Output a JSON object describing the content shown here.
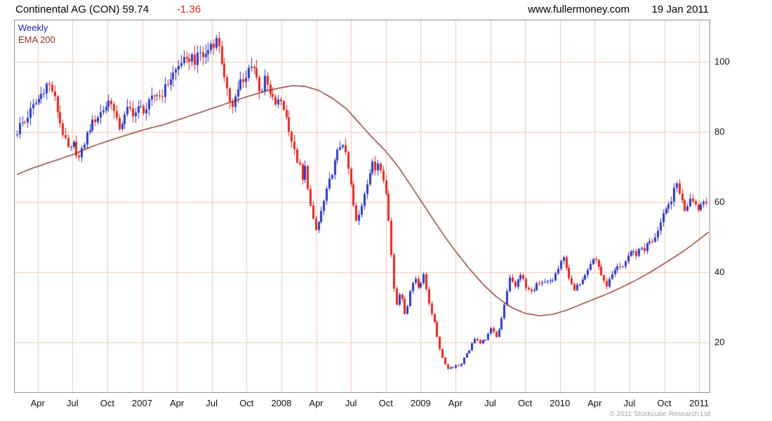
{
  "header": {
    "title": "Continental AG (CON) 59.74",
    "change": "-1.36",
    "site": "www.fullermoney.com",
    "date": "19 Jan 2011"
  },
  "legend": {
    "timeframe": "Weekly",
    "overlay": "EMA 200"
  },
  "footer": {
    "copyright": "© 2011 Stockcube Research Ltd"
  },
  "chart_data": {
    "type": "candlestick",
    "instrument": "Continental AG (CON)",
    "last_price": 59.74,
    "change": -1.36,
    "interval": "Weekly",
    "overlay": "EMA 200",
    "price_axis_side": "right",
    "grid": true,
    "legend_position": "top-left",
    "time_range": [
      2006.08,
      2011.08
    ],
    "candle_range": [
      2006.1,
      2011.05
    ],
    "ylim": [
      5.6,
      112
    ],
    "yticks": [
      100,
      80,
      60,
      40,
      20
    ],
    "xticks": [
      {
        "label": "Apr",
        "t": 2006.25
      },
      {
        "label": "Jul",
        "t": 2006.5
      },
      {
        "label": "Oct",
        "t": 2006.75
      },
      {
        "label": "2007",
        "t": 2007.0
      },
      {
        "label": "Apr",
        "t": 2007.25
      },
      {
        "label": "Jul",
        "t": 2007.5
      },
      {
        "label": "Oct",
        "t": 2007.75
      },
      {
        "label": "2008",
        "t": 2008.0
      },
      {
        "label": "Apr",
        "t": 2008.25
      },
      {
        "label": "Jul",
        "t": 2008.5
      },
      {
        "label": "Oct",
        "t": 2008.75
      },
      {
        "label": "2009",
        "t": 2009.0
      },
      {
        "label": "Apr",
        "t": 2009.25
      },
      {
        "label": "Jul",
        "t": 2009.5
      },
      {
        "label": "Oct",
        "t": 2009.75
      },
      {
        "label": "2010",
        "t": 2010.0
      },
      {
        "label": "Apr",
        "t": 2010.25
      },
      {
        "label": "Jul",
        "t": 2010.5
      },
      {
        "label": "Oct",
        "t": 2010.75
      },
      {
        "label": "2011",
        "t": 2011.0
      }
    ],
    "up_color": "#2d3bbf",
    "down_color": "#e02820",
    "ema_color": "#7f2b1c",
    "grid_color": "#f4c6b8",
    "frame_color": "#8c8c8c",
    "close_path": [
      [
        2006.08,
        79
      ],
      [
        2006.1,
        80
      ],
      [
        2006.13,
        83
      ],
      [
        2006.15,
        82
      ],
      [
        2006.17,
        84
      ],
      [
        2006.21,
        87
      ],
      [
        2006.25,
        89
      ],
      [
        2006.29,
        92
      ],
      [
        2006.32,
        94
      ],
      [
        2006.35,
        92
      ],
      [
        2006.38,
        88
      ],
      [
        2006.4,
        84
      ],
      [
        2006.44,
        78
      ],
      [
        2006.48,
        74
      ],
      [
        2006.5,
        77
      ],
      [
        2006.52,
        75
      ],
      [
        2006.54,
        72
      ],
      [
        2006.56,
        74
      ],
      [
        2006.6,
        79
      ],
      [
        2006.63,
        82
      ],
      [
        2006.67,
        84
      ],
      [
        2006.71,
        86
      ],
      [
        2006.75,
        88
      ],
      [
        2006.77,
        90
      ],
      [
        2006.8,
        85
      ],
      [
        2006.83,
        81
      ],
      [
        2006.87,
        84
      ],
      [
        2006.9,
        87
      ],
      [
        2006.94,
        85
      ],
      [
        2006.98,
        87
      ],
      [
        2007.02,
        86
      ],
      [
        2007.06,
        89
      ],
      [
        2007.1,
        91
      ],
      [
        2007.13,
        90
      ],
      [
        2007.17,
        93
      ],
      [
        2007.21,
        96
      ],
      [
        2007.25,
        98
      ],
      [
        2007.29,
        101
      ],
      [
        2007.31,
        99
      ],
      [
        2007.35,
        102
      ],
      [
        2007.38,
        100
      ],
      [
        2007.42,
        103
      ],
      [
        2007.44,
        101
      ],
      [
        2007.48,
        104
      ],
      [
        2007.5,
        106
      ],
      [
        2007.52,
        105
      ],
      [
        2007.54,
        107
      ],
      [
        2007.56,
        103
      ],
      [
        2007.58,
        97
      ],
      [
        2007.6,
        92
      ],
      [
        2007.63,
        89
      ],
      [
        2007.65,
        88
      ],
      [
        2007.69,
        93
      ],
      [
        2007.71,
        95
      ],
      [
        2007.73,
        93
      ],
      [
        2007.75,
        96
      ],
      [
        2007.77,
        99
      ],
      [
        2007.79,
        100
      ],
      [
        2007.81,
        97
      ],
      [
        2007.83,
        94
      ],
      [
        2007.85,
        91
      ],
      [
        2007.88,
        95
      ],
      [
        2007.9,
        93
      ],
      [
        2007.92,
        90
      ],
      [
        2007.96,
        88
      ],
      [
        2008.0,
        89
      ],
      [
        2008.02,
        86
      ],
      [
        2008.06,
        80
      ],
      [
        2008.08,
        76
      ],
      [
        2008.1,
        73
      ],
      [
        2008.13,
        70
      ],
      [
        2008.15,
        66
      ],
      [
        2008.17,
        70
      ],
      [
        2008.19,
        64
      ],
      [
        2008.21,
        58
      ],
      [
        2008.23,
        54
      ],
      [
        2008.25,
        51.5
      ],
      [
        2008.27,
        55
      ],
      [
        2008.29,
        58
      ],
      [
        2008.31,
        61
      ],
      [
        2008.33,
        64
      ],
      [
        2008.35,
        67
      ],
      [
        2008.38,
        71
      ],
      [
        2008.4,
        74
      ],
      [
        2008.42,
        76
      ],
      [
        2008.44,
        77
      ],
      [
        2008.46,
        73
      ],
      [
        2008.48,
        69
      ],
      [
        2008.5,
        64
      ],
      [
        2008.52,
        58
      ],
      [
        2008.54,
        53.5
      ],
      [
        2008.56,
        57
      ],
      [
        2008.58,
        60
      ],
      [
        2008.6,
        64
      ],
      [
        2008.63,
        68
      ],
      [
        2008.65,
        71
      ],
      [
        2008.67,
        69
      ],
      [
        2008.69,
        71.5
      ],
      [
        2008.71,
        70
      ],
      [
        2008.73,
        67
      ],
      [
        2008.75,
        62
      ],
      [
        2008.77,
        54
      ],
      [
        2008.79,
        44
      ],
      [
        2008.81,
        34
      ],
      [
        2008.83,
        30.5
      ],
      [
        2008.85,
        35
      ],
      [
        2008.87,
        31
      ],
      [
        2008.89,
        27.5
      ],
      [
        2008.91,
        32
      ],
      [
        2008.93,
        36
      ],
      [
        2008.96,
        38.5
      ],
      [
        2008.98,
        36
      ],
      [
        2009.0,
        37
      ],
      [
        2009.02,
        39
      ],
      [
        2009.04,
        35
      ],
      [
        2009.06,
        31
      ],
      [
        2009.08,
        28
      ],
      [
        2009.1,
        25
      ],
      [
        2009.12,
        21
      ],
      [
        2009.14,
        17.5
      ],
      [
        2009.16,
        15
      ],
      [
        2009.18,
        13.5
      ],
      [
        2009.2,
        12
      ],
      [
        2009.22,
        13.5
      ],
      [
        2009.24,
        12.5
      ],
      [
        2009.26,
        14
      ],
      [
        2009.28,
        13
      ],
      [
        2009.31,
        15.5
      ],
      [
        2009.35,
        18
      ],
      [
        2009.38,
        20.5
      ],
      [
        2009.4,
        21.5
      ],
      [
        2009.42,
        19.5
      ],
      [
        2009.44,
        21
      ],
      [
        2009.46,
        20
      ],
      [
        2009.48,
        22.5
      ],
      [
        2009.5,
        24
      ],
      [
        2009.52,
        23
      ],
      [
        2009.54,
        21.5
      ],
      [
        2009.56,
        23.5
      ],
      [
        2009.58,
        27
      ],
      [
        2009.6,
        31
      ],
      [
        2009.62,
        35
      ],
      [
        2009.64,
        38.5
      ],
      [
        2009.66,
        37
      ],
      [
        2009.68,
        36
      ],
      [
        2009.7,
        38
      ],
      [
        2009.72,
        39.5
      ],
      [
        2009.74,
        37.5
      ],
      [
        2009.76,
        34.5
      ],
      [
        2009.78,
        36
      ],
      [
        2009.8,
        33.5
      ],
      [
        2009.82,
        35.5
      ],
      [
        2009.84,
        37
      ],
      [
        2009.86,
        36
      ],
      [
        2009.88,
        37.5
      ],
      [
        2009.9,
        36.5
      ],
      [
        2009.92,
        38
      ],
      [
        2009.94,
        37
      ],
      [
        2009.96,
        39
      ],
      [
        2009.98,
        40.5
      ],
      [
        2010.0,
        42
      ],
      [
        2010.02,
        44.5
      ],
      [
        2010.04,
        42.5
      ],
      [
        2010.06,
        39
      ],
      [
        2010.08,
        36.5
      ],
      [
        2010.1,
        34.5
      ],
      [
        2010.12,
        36
      ],
      [
        2010.15,
        37.5
      ],
      [
        2010.17,
        39
      ],
      [
        2010.19,
        40.5
      ],
      [
        2010.21,
        42
      ],
      [
        2010.23,
        43.5
      ],
      [
        2010.25,
        44
      ],
      [
        2010.27,
        42.5
      ],
      [
        2010.29,
        40
      ],
      [
        2010.31,
        37.5
      ],
      [
        2010.33,
        36
      ],
      [
        2010.35,
        37.5
      ],
      [
        2010.37,
        39
      ],
      [
        2010.4,
        40.5
      ],
      [
        2010.42,
        42
      ],
      [
        2010.44,
        40.5
      ],
      [
        2010.46,
        42.5
      ],
      [
        2010.48,
        44
      ],
      [
        2010.5,
        45.5
      ],
      [
        2010.52,
        46.5
      ],
      [
        2010.54,
        44.5
      ],
      [
        2010.56,
        46
      ],
      [
        2010.58,
        47.5
      ],
      [
        2010.6,
        46
      ],
      [
        2010.62,
        47.5
      ],
      [
        2010.64,
        49
      ],
      [
        2010.66,
        48
      ],
      [
        2010.68,
        50
      ],
      [
        2010.7,
        52
      ],
      [
        2010.72,
        54
      ],
      [
        2010.74,
        56
      ],
      [
        2010.76,
        57.5
      ],
      [
        2010.78,
        59
      ],
      [
        2010.8,
        61
      ],
      [
        2010.82,
        63.5
      ],
      [
        2010.84,
        65.5
      ],
      [
        2010.86,
        62.5
      ],
      [
        2010.88,
        59.5
      ],
      [
        2010.9,
        57.5
      ],
      [
        2010.92,
        60
      ],
      [
        2010.94,
        62
      ],
      [
        2010.96,
        60.5
      ],
      [
        2010.98,
        58.5
      ],
      [
        2011.0,
        58
      ],
      [
        2011.02,
        60.5
      ],
      [
        2011.05,
        59.74
      ]
    ],
    "ema_path": [
      [
        2006.08,
        67.5
      ],
      [
        2006.2,
        69.5
      ],
      [
        2006.35,
        71.5
      ],
      [
        2006.5,
        73.5
      ],
      [
        2006.65,
        76
      ],
      [
        2006.8,
        78
      ],
      [
        2006.92,
        79.5
      ],
      [
        2007.0,
        80.5
      ],
      [
        2007.15,
        82
      ],
      [
        2007.3,
        84
      ],
      [
        2007.45,
        86
      ],
      [
        2007.6,
        88
      ],
      [
        2007.75,
        90
      ],
      [
        2007.9,
        91.8
      ],
      [
        2008.0,
        92.6
      ],
      [
        2008.08,
        93.2
      ],
      [
        2008.17,
        93
      ],
      [
        2008.27,
        91.8
      ],
      [
        2008.37,
        89.5
      ],
      [
        2008.47,
        86.5
      ],
      [
        2008.56,
        82.5
      ],
      [
        2008.65,
        78.5
      ],
      [
        2008.75,
        74.5
      ],
      [
        2008.85,
        69.5
      ],
      [
        2008.95,
        63.5
      ],
      [
        2009.05,
        57.5
      ],
      [
        2009.15,
        51.5
      ],
      [
        2009.25,
        46
      ],
      [
        2009.35,
        41
      ],
      [
        2009.45,
        36.5
      ],
      [
        2009.55,
        32.8
      ],
      [
        2009.65,
        30
      ],
      [
        2009.75,
        28.3
      ],
      [
        2009.85,
        27.6
      ],
      [
        2009.95,
        28
      ],
      [
        2010.05,
        29.2
      ],
      [
        2010.15,
        30.8
      ],
      [
        2010.25,
        32.4
      ],
      [
        2010.35,
        34
      ],
      [
        2010.45,
        35.8
      ],
      [
        2010.55,
        37.8
      ],
      [
        2010.65,
        40
      ],
      [
        2010.75,
        42.5
      ],
      [
        2010.85,
        45
      ],
      [
        2010.95,
        47.8
      ],
      [
        2011.08,
        51.8
      ]
    ]
  }
}
